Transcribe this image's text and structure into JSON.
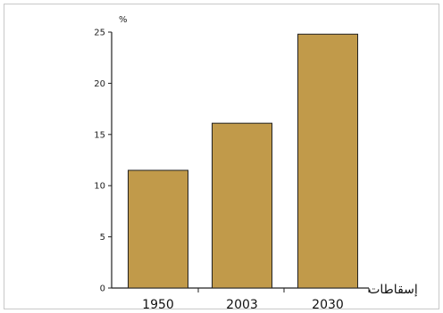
{
  "chart_data": {
    "type": "bar",
    "categories": [
      "1950",
      "2003",
      "2030"
    ],
    "values": [
      11.5,
      16.1,
      24.8
    ],
    "y_unit": "%",
    "x_suffix_label": "إسقاطات",
    "yticks": [
      0,
      5,
      10,
      15,
      20,
      25
    ],
    "ylim": [
      0,
      25
    ],
    "grid": false,
    "legend": "none",
    "bar_color": "#c19a4a"
  }
}
